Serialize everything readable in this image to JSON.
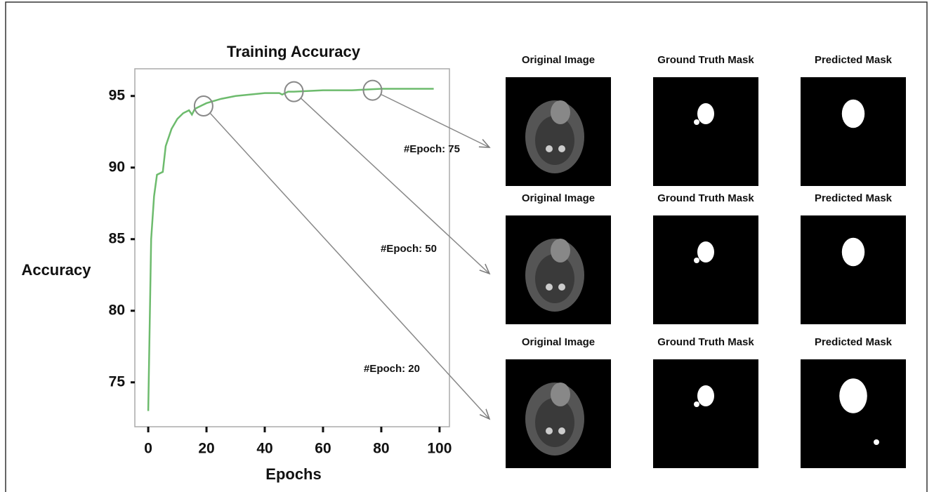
{
  "chart_data": {
    "type": "line",
    "title": "Training Accuracy",
    "x_label": "Epochs",
    "y_label": "Accuracy",
    "x": [
      0,
      1,
      2,
      3,
      5,
      6,
      8,
      10,
      12,
      14,
      15,
      16,
      18,
      20,
      25,
      30,
      40,
      45,
      46,
      48,
      50,
      60,
      70,
      80,
      90,
      98
    ],
    "series": [
      {
        "name": "Training Accuracy",
        "color": "#6dbb6d",
        "values": [
          73,
          85,
          88,
          89.5,
          89.7,
          91.5,
          92.7,
          93.4,
          93.8,
          94,
          93.7,
          94.1,
          94.3,
          94.5,
          94.8,
          95,
          95.2,
          95.2,
          95.1,
          95.3,
          95.3,
          95.4,
          95.4,
          95.5,
          95.5,
          95.5
        ]
      }
    ],
    "xlim": [
      -4.6,
      103.4
    ],
    "ylim": [
      71.9,
      96.9
    ],
    "xticks": [
      0,
      20,
      40,
      60,
      80,
      100
    ],
    "yticks": [
      75,
      80,
      85,
      90,
      95
    ],
    "highlights": [
      {
        "x": 77,
        "y": 95.4,
        "label": "#Epoch: 75"
      },
      {
        "x": 50,
        "y": 95.3,
        "label": "#Epoch: 50"
      },
      {
        "x": 19,
        "y": 94.3,
        "label": "#Epoch: 20"
      }
    ]
  },
  "image_grid": [
    [
      "Original Image",
      "Ground Truth Mask",
      "Predicted Mask"
    ],
    [
      "Original Image",
      "Ground Truth Mask",
      "Predicted Mask"
    ],
    [
      "Original Image",
      "Ground Truth Mask",
      "Predicted Mask"
    ]
  ]
}
